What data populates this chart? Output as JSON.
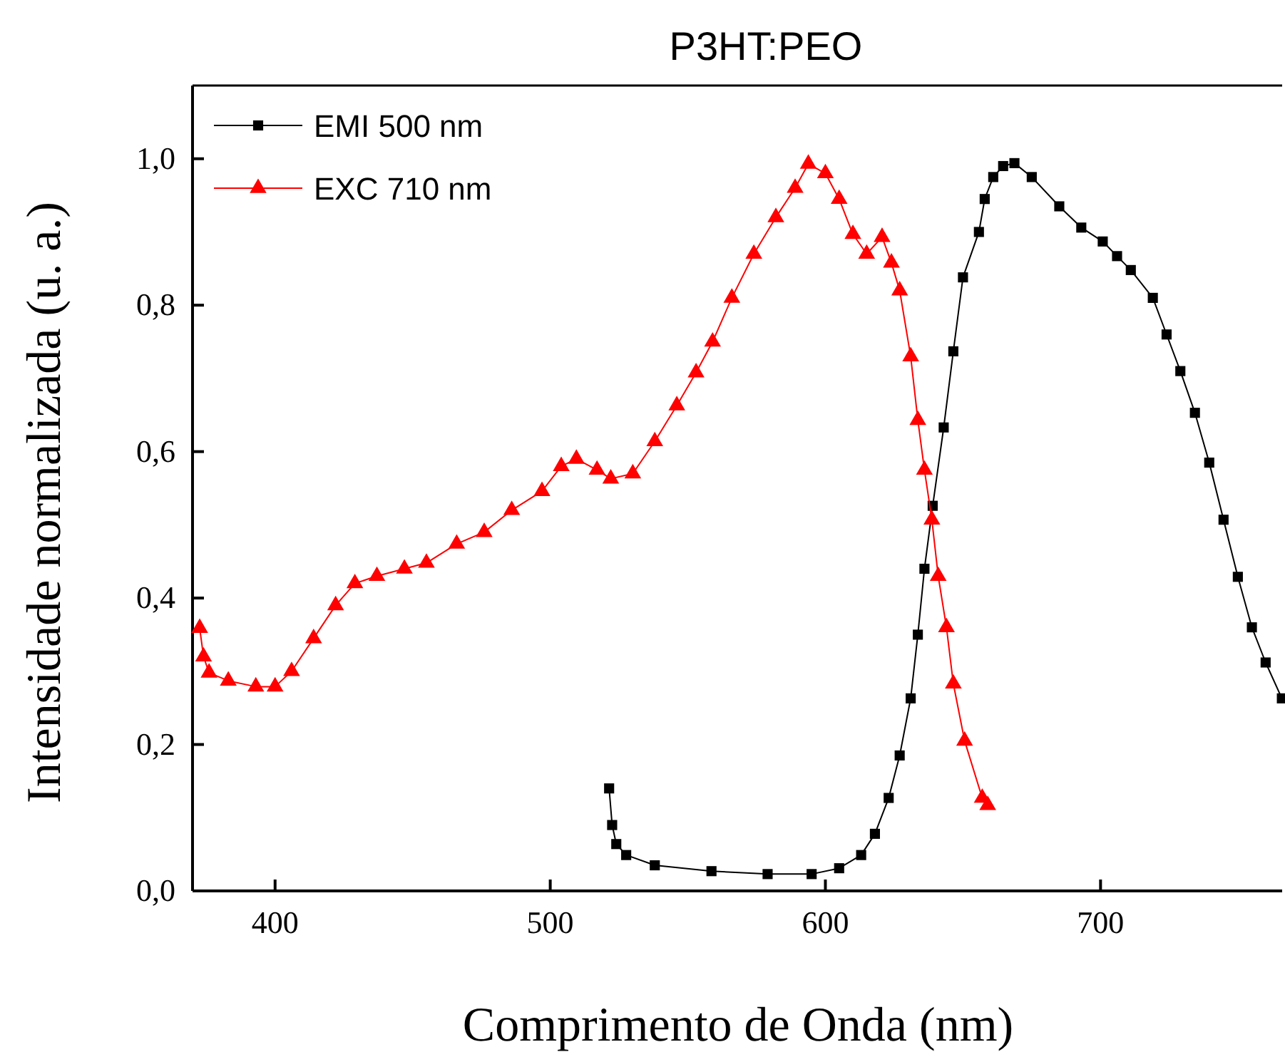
{
  "chart_data": {
    "type": "line",
    "title": "P3HT:PEO",
    "xlabel": "Comprimento de Onda (nm)",
    "ylabel": "Intensidade normalizada (u. a.)",
    "xlim": [
      370,
      766
    ],
    "xticks": [
      400,
      500,
      600,
      700
    ],
    "ylim": [
      0,
      1.1
    ],
    "yticks": [
      {
        "value": 0,
        "label": "0,0"
      },
      {
        "value": 0.2,
        "label": "0,2"
      },
      {
        "value": 0.4,
        "label": "0,4"
      },
      {
        "value": 0.6,
        "label": "0,6"
      },
      {
        "value": 0.8,
        "label": "0,8"
      },
      {
        "value": 1.0,
        "label": "1,0"
      }
    ],
    "grid": false,
    "legend": "top left",
    "line_style": "solid",
    "series": [
      {
        "name": "EMI 500 nm",
        "color": "#000000",
        "marker": "square",
        "x": [
          521.4,
          522.5,
          524,
          527.6,
          538,
          558.6,
          579,
          595,
          605,
          613,
          618,
          623,
          627,
          631,
          633.6,
          636,
          639,
          643,
          646.5,
          650,
          655.8,
          657.9,
          661,
          664.6,
          668.7,
          675,
          685,
          693,
          700.8,
          706,
          711,
          719,
          724,
          729,
          734.3,
          739.5,
          744.7,
          749.9,
          755,
          760,
          765.9
        ],
        "values": [
          0.14,
          0.09,
          0.064,
          0.049,
          0.035,
          0.027,
          0.023,
          0.023,
          0.031,
          0.049,
          0.078,
          0.127,
          0.185,
          0.263,
          0.35,
          0.44,
          0.526,
          0.633,
          0.737,
          0.838,
          0.9,
          0.945,
          0.975,
          0.99,
          0.994,
          0.975,
          0.935,
          0.906,
          0.887,
          0.867,
          0.848,
          0.81,
          0.76,
          0.71,
          0.653,
          0.585,
          0.507,
          0.429,
          0.36,
          0.312,
          0.263
        ]
      },
      {
        "name": "EXC 710 nm",
        "color": "#ff0000",
        "marker": "triangle",
        "x": [
          372.6,
          374,
          376,
          383,
          393,
          400,
          406,
          414,
          422,
          429,
          437,
          447,
          455,
          466,
          476,
          486,
          497,
          504,
          509.5,
          517,
          522,
          530,
          538,
          546,
          553,
          559,
          566,
          574,
          582,
          589,
          593.8,
          600,
          605,
          610,
          615,
          620.6,
          624,
          627,
          631,
          633.6,
          636,
          638.7,
          641,
          644,
          646.5,
          650.6,
          657,
          659
        ],
        "values": [
          0.359,
          0.32,
          0.298,
          0.287,
          0.279,
          0.279,
          0.3,
          0.345,
          0.39,
          0.42,
          0.43,
          0.44,
          0.448,
          0.474,
          0.49,
          0.52,
          0.546,
          0.58,
          0.59,
          0.575,
          0.563,
          0.57,
          0.614,
          0.663,
          0.708,
          0.75,
          0.81,
          0.87,
          0.92,
          0.96,
          0.993,
          0.98,
          0.945,
          0.897,
          0.87,
          0.893,
          0.858,
          0.82,
          0.73,
          0.643,
          0.575,
          0.507,
          0.43,
          0.36,
          0.283,
          0.205,
          0.127,
          0.117
        ]
      }
    ]
  }
}
